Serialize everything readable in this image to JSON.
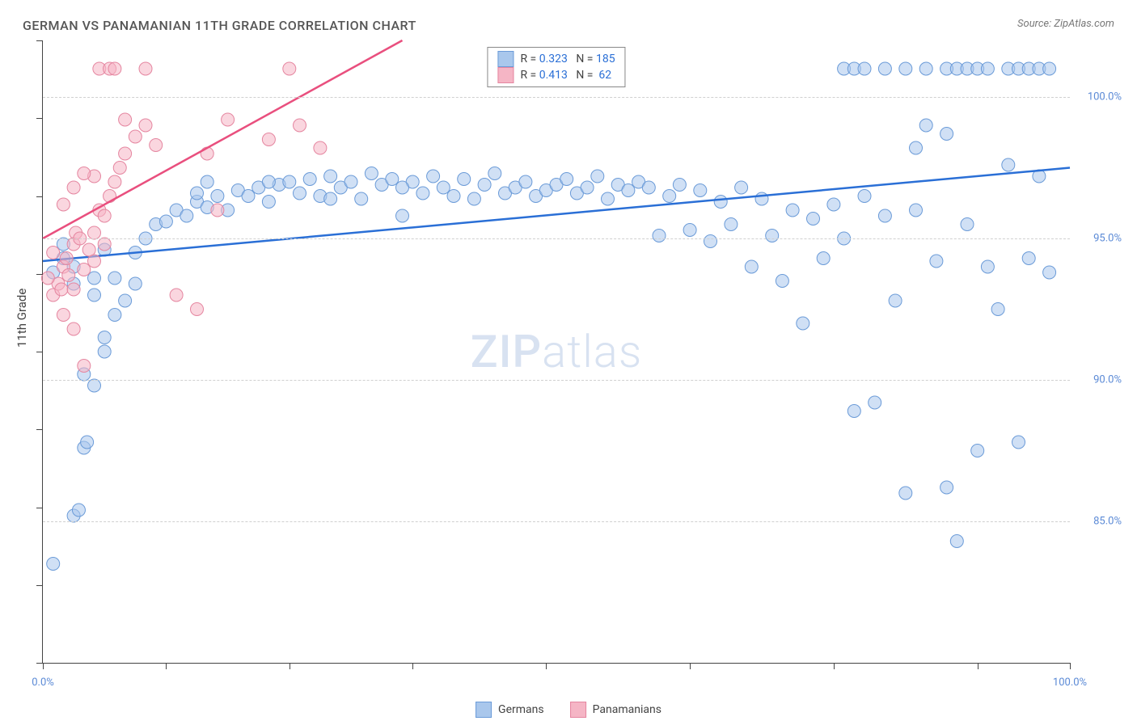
{
  "title": "GERMAN VS PANAMANIAN 11TH GRADE CORRELATION CHART",
  "source": "Source: ZipAtlas.com",
  "ylabel": "11th Grade",
  "watermark": {
    "bold": "ZIP",
    "light": "atlas"
  },
  "chart": {
    "type": "scatter",
    "xlim": [
      0,
      100
    ],
    "ylim": [
      80,
      102
    ],
    "xtick_positions": [
      0,
      12,
      24,
      36,
      49,
      63,
      77,
      91,
      100
    ],
    "xtick_labels": {
      "0": "0.0%",
      "100": "100.0%"
    },
    "ytick_positions": [
      85,
      90,
      95,
      100
    ],
    "ytick_labels": [
      "85.0%",
      "90.0%",
      "95.0%",
      "100.0%"
    ],
    "background_color": "#ffffff",
    "grid_color": "#d0d0d0",
    "marker_radius": 8,
    "marker_opacity": 0.55,
    "series": [
      {
        "name": "Germans",
        "fill": "#a9c7ec",
        "stroke": "#6b9bd8",
        "line_color": "#2a6fd6",
        "line": {
          "x1": 0,
          "y1": 94.2,
          "x2": 100,
          "y2": 97.5
        },
        "R": "0.323",
        "N": "185",
        "points": [
          [
            1,
            83.5
          ],
          [
            3,
            85.2
          ],
          [
            3.5,
            85.4
          ],
          [
            4,
            87.6
          ],
          [
            4.3,
            87.8
          ],
          [
            5,
            89.8
          ],
          [
            4,
            90.2
          ],
          [
            6,
            91.0
          ],
          [
            8,
            92.8
          ],
          [
            5,
            93.0
          ],
          [
            7,
            93.6
          ],
          [
            3,
            94.0
          ],
          [
            1,
            93.8
          ],
          [
            2,
            94.3
          ],
          [
            5,
            93.6
          ],
          [
            6,
            94.6
          ],
          [
            9,
            94.5
          ],
          [
            10,
            95.0
          ],
          [
            11,
            95.5
          ],
          [
            9,
            93.4
          ],
          [
            12,
            95.6
          ],
          [
            13,
            96.0
          ],
          [
            14,
            95.8
          ],
          [
            15,
            96.3
          ],
          [
            16,
            96.1
          ],
          [
            17,
            96.5
          ],
          [
            18,
            96.0
          ],
          [
            19,
            96.7
          ],
          [
            20,
            96.5
          ],
          [
            21,
            96.8
          ],
          [
            22,
            96.3
          ],
          [
            23,
            96.9
          ],
          [
            24,
            97.0
          ],
          [
            25,
            96.6
          ],
          [
            26,
            97.1
          ],
          [
            27,
            96.5
          ],
          [
            28,
            97.2
          ],
          [
            29,
            96.8
          ],
          [
            30,
            97.0
          ],
          [
            31,
            96.4
          ],
          [
            32,
            97.3
          ],
          [
            33,
            96.9
          ],
          [
            34,
            97.1
          ],
          [
            35,
            95.8
          ],
          [
            36,
            97.0
          ],
          [
            37,
            96.6
          ],
          [
            38,
            97.2
          ],
          [
            39,
            96.8
          ],
          [
            40,
            96.5
          ],
          [
            41,
            97.1
          ],
          [
            42,
            96.4
          ],
          [
            43,
            96.9
          ],
          [
            44,
            97.3
          ],
          [
            45,
            96.6
          ],
          [
            46,
            96.8
          ],
          [
            47,
            97.0
          ],
          [
            48,
            96.5
          ],
          [
            49,
            96.7
          ],
          [
            50,
            96.9
          ],
          [
            51,
            97.1
          ],
          [
            52,
            96.6
          ],
          [
            53,
            96.8
          ],
          [
            54,
            97.2
          ],
          [
            55,
            96.4
          ],
          [
            56,
            96.9
          ],
          [
            57,
            96.7
          ],
          [
            58,
            97.0
          ],
          [
            59,
            96.8
          ],
          [
            60,
            95.1
          ],
          [
            61,
            96.5
          ],
          [
            62,
            96.9
          ],
          [
            63,
            95.3
          ],
          [
            64,
            96.7
          ],
          [
            65,
            94.9
          ],
          [
            66,
            96.3
          ],
          [
            67,
            95.5
          ],
          [
            68,
            96.8
          ],
          [
            69,
            94.0
          ],
          [
            70,
            96.4
          ],
          [
            71,
            95.1
          ],
          [
            72,
            93.5
          ],
          [
            73,
            96.0
          ],
          [
            74,
            92.0
          ],
          [
            75,
            95.7
          ],
          [
            76,
            94.3
          ],
          [
            77,
            96.2
          ],
          [
            78,
            95.0
          ],
          [
            79,
            88.9
          ],
          [
            80,
            96.5
          ],
          [
            81,
            89.2
          ],
          [
            82,
            95.8
          ],
          [
            83,
            92.8
          ],
          [
            84,
            86.0
          ],
          [
            85,
            96.0
          ],
          [
            86,
            99.0
          ],
          [
            87,
            94.2
          ],
          [
            88,
            86.2
          ],
          [
            89,
            84.3
          ],
          [
            90,
            95.5
          ],
          [
            91,
            87.5
          ],
          [
            92,
            94.0
          ],
          [
            93,
            92.5
          ],
          [
            94,
            97.6
          ],
          [
            95,
            87.8
          ],
          [
            96,
            94.3
          ],
          [
            97,
            97.2
          ],
          [
            98,
            93.8
          ],
          [
            78,
            101.0
          ],
          [
            79,
            101.0
          ],
          [
            80,
            101.0
          ],
          [
            82,
            101.0
          ],
          [
            84,
            101.0
          ],
          [
            86,
            101.0
          ],
          [
            88,
            101.0
          ],
          [
            89,
            101.0
          ],
          [
            90,
            101.0
          ],
          [
            91,
            101.0
          ],
          [
            92,
            101.0
          ],
          [
            94,
            101.0
          ],
          [
            95,
            101.0
          ],
          [
            96,
            101.0
          ],
          [
            97,
            101.0
          ],
          [
            98,
            101.0
          ],
          [
            85,
            98.2
          ],
          [
            88,
            98.7
          ],
          [
            6,
            91.5
          ],
          [
            7,
            92.3
          ],
          [
            3,
            93.4
          ],
          [
            2,
            94.8
          ],
          [
            15,
            96.6
          ],
          [
            16,
            97.0
          ],
          [
            22,
            97.0
          ],
          [
            28,
            96.4
          ],
          [
            35,
            96.8
          ]
        ]
      },
      {
        "name": "Panamanians",
        "fill": "#f5b5c5",
        "stroke": "#e586a0",
        "line_color": "#e94f7e",
        "line": {
          "x1": 0,
          "y1": 95.0,
          "x2": 35,
          "y2": 102.0
        },
        "R": "0.413",
        "N": "62",
        "points": [
          [
            1,
            93.0
          ],
          [
            1.5,
            93.4
          ],
          [
            2,
            94.0
          ],
          [
            2.3,
            94.3
          ],
          [
            3,
            94.8
          ],
          [
            3.2,
            95.2
          ],
          [
            0.5,
            93.6
          ],
          [
            1,
            94.5
          ],
          [
            1.8,
            93.2
          ],
          [
            2.5,
            93.7
          ],
          [
            3,
            93.2
          ],
          [
            3.6,
            95.0
          ],
          [
            4,
            93.9
          ],
          [
            4.5,
            94.6
          ],
          [
            5,
            95.2
          ],
          [
            5.5,
            96.0
          ],
          [
            6,
            95.8
          ],
          [
            6.5,
            96.5
          ],
          [
            7,
            97.0
          ],
          [
            7.5,
            97.5
          ],
          [
            5,
            94.2
          ],
          [
            6,
            94.8
          ],
          [
            2,
            92.3
          ],
          [
            3,
            91.8
          ],
          [
            8,
            98.0
          ],
          [
            9,
            98.6
          ],
          [
            10,
            99.0
          ],
          [
            11,
            98.3
          ],
          [
            4,
            90.5
          ],
          [
            5,
            97.2
          ],
          [
            16,
            98.0
          ],
          [
            18,
            99.2
          ],
          [
            13,
            93.0
          ],
          [
            15,
            92.5
          ],
          [
            17,
            96.0
          ],
          [
            22,
            98.5
          ],
          [
            25,
            99.0
          ],
          [
            27,
            98.2
          ],
          [
            2,
            96.2
          ],
          [
            3,
            96.8
          ],
          [
            4,
            97.3
          ],
          [
            5.5,
            101.0
          ],
          [
            6.5,
            101.0
          ],
          [
            7,
            101.0
          ],
          [
            10,
            101.0
          ],
          [
            24,
            101.0
          ],
          [
            8,
            99.2
          ]
        ]
      }
    ],
    "legend_inline": {
      "rows": [
        {
          "swatch_fill": "#a9c7ec",
          "swatch_stroke": "#6b9bd8",
          "r_label": "R =",
          "r_val": "0.323",
          "n_label": "N =",
          "n_val": "185"
        },
        {
          "swatch_fill": "#f5b5c5",
          "swatch_stroke": "#e586a0",
          "r_label": "R =",
          "r_val": "0.413",
          "n_label": "N =",
          "n_val": "62"
        }
      ]
    },
    "legend_bottom": [
      {
        "swatch_fill": "#a9c7ec",
        "swatch_stroke": "#6b9bd8",
        "label": "Germans"
      },
      {
        "swatch_fill": "#f5b5c5",
        "swatch_stroke": "#e586a0",
        "label": "Panamanians"
      }
    ]
  }
}
